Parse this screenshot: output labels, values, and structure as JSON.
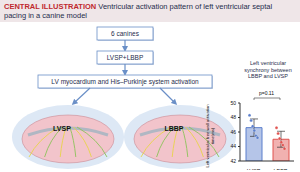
{
  "header": {
    "label": "CENTRAL ILLUSTRATION",
    "title": "Ventricular activation pattern of left ventricular septal pacing in a canine model"
  },
  "flowchart": {
    "nodes": [
      {
        "label": "6 canines"
      },
      {
        "label": "LVSP+LBBP"
      },
      {
        "label": "LV myocardium and His–Purkinje system activation"
      }
    ]
  },
  "hearts": [
    {
      "label": "LVSP"
    },
    {
      "label": "LBBP"
    }
  ],
  "chart_data": {
    "type": "bar",
    "title": "Left ventricular synchrony between LBBP and LVSP",
    "y_label": "Left ventricular free wall activation time(ms)",
    "categories": [
      "LVSP",
      "LBBP"
    ],
    "values": [
      46.6,
      45.0
    ],
    "errors": [
      1.2,
      1.1
    ],
    "points": [
      [
        48.3,
        47.6,
        46.8,
        46.2,
        45.5,
        45.2
      ],
      [
        46.6,
        45.8,
        45.1,
        44.6,
        44.2,
        43.7
      ]
    ],
    "colors": [
      "#5b7fcc",
      "#e0524f"
    ],
    "ylim": [
      42,
      50
    ],
    "yticks": [
      42,
      44,
      46,
      48,
      50
    ],
    "annotation": "p=0.11"
  }
}
